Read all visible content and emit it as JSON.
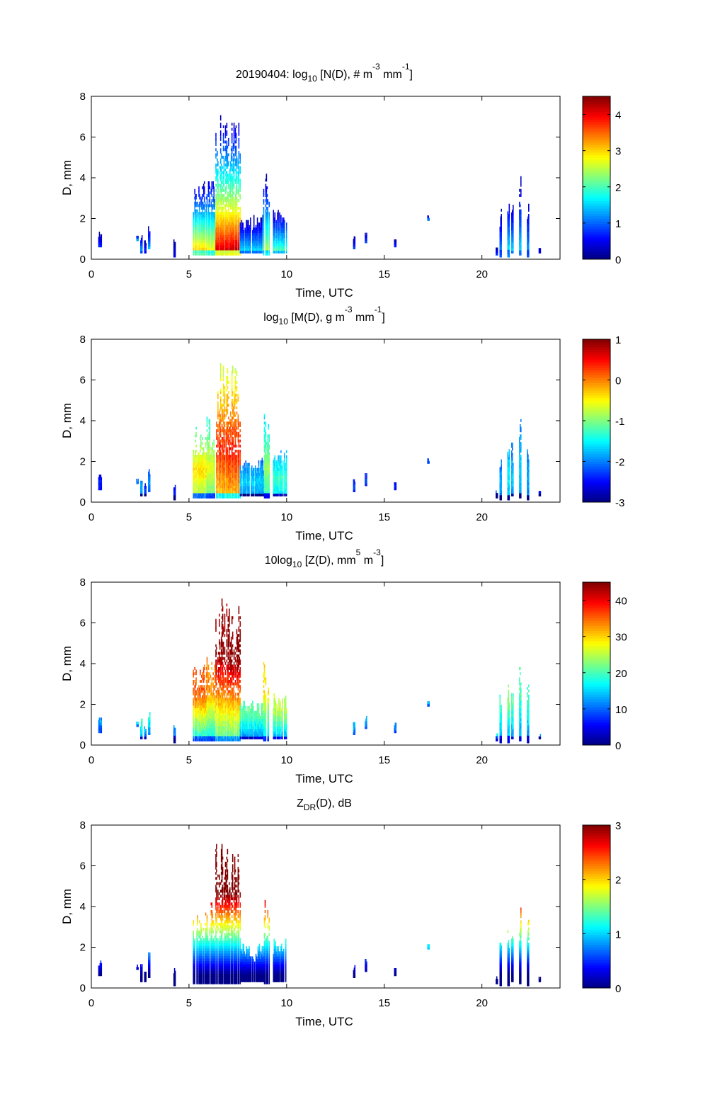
{
  "chart_data": [
    {
      "type": "heatmap",
      "title_parts": [
        {
          "t": "20190404: log"
        },
        {
          "t": "10",
          "sub": true
        },
        {
          "t": " [N(D), # m"
        },
        {
          "t": "-3",
          "sup": true
        },
        {
          "t": " mm"
        },
        {
          "t": "-1",
          "sup": true
        },
        {
          "t": "]"
        }
      ],
      "title": "20190404: log10 [N(D), # m^-3 mm^-1]",
      "xlabel": "Time, UTC",
      "ylabel": "D, mm",
      "xlim": [
        0,
        24
      ],
      "ylim": [
        0,
        8
      ],
      "xticks": [
        0,
        5,
        10,
        15,
        20
      ],
      "yticks": [
        0,
        2,
        4,
        6,
        8
      ],
      "colorbar": {
        "range": [
          0,
          4.5
        ],
        "ticks": [
          0,
          1,
          2,
          3,
          4
        ]
      },
      "variable": "N"
    },
    {
      "type": "heatmap",
      "title_parts": [
        {
          "t": "log"
        },
        {
          "t": "10",
          "sub": true
        },
        {
          "t": " [M(D), g m"
        },
        {
          "t": "-3",
          "sup": true
        },
        {
          "t": " mm"
        },
        {
          "t": "-1",
          "sup": true
        },
        {
          "t": "]"
        }
      ],
      "title": "log10 [M(D), g m^-3 mm^-1]",
      "xlabel": "Time, UTC",
      "ylabel": "D, mm",
      "xlim": [
        0,
        24
      ],
      "ylim": [
        0,
        8
      ],
      "xticks": [
        0,
        5,
        10,
        15,
        20
      ],
      "yticks": [
        0,
        2,
        4,
        6,
        8
      ],
      "colorbar": {
        "range": [
          -3,
          1
        ],
        "ticks": [
          -3,
          -2,
          -1,
          0,
          1
        ]
      },
      "variable": "M"
    },
    {
      "type": "heatmap",
      "title_parts": [
        {
          "t": "10log"
        },
        {
          "t": "10",
          "sub": true
        },
        {
          "t": " [Z(D),  mm"
        },
        {
          "t": "5",
          "sup": true
        },
        {
          "t": " m"
        },
        {
          "t": "-3",
          "sup": true
        },
        {
          "t": "]"
        }
      ],
      "title": "10log10 [Z(D), mm^5 m^-3]",
      "xlabel": "Time, UTC",
      "ylabel": "D, mm",
      "xlim": [
        0,
        24
      ],
      "ylim": [
        0,
        8
      ],
      "xticks": [
        0,
        5,
        10,
        15,
        20
      ],
      "yticks": [
        0,
        2,
        4,
        6,
        8
      ],
      "colorbar": {
        "range": [
          0,
          45
        ],
        "ticks": [
          0,
          10,
          20,
          30,
          40
        ]
      },
      "variable": "Z"
    },
    {
      "type": "heatmap",
      "title_parts": [
        {
          "t": "Z"
        },
        {
          "t": "DR",
          "sub": true
        },
        {
          "t": "(D), dB"
        }
      ],
      "title": "ZDR(D), dB",
      "xlabel": "Time, UTC",
      "ylabel": "D, mm",
      "xlim": [
        0,
        24
      ],
      "ylim": [
        0,
        8
      ],
      "xticks": [
        0,
        5,
        10,
        15,
        20
      ],
      "yticks": [
        0,
        2,
        4,
        6,
        8
      ],
      "colorbar": {
        "range": [
          0,
          3
        ],
        "ticks": [
          0,
          1,
          2,
          3
        ]
      },
      "variable": "ZDR"
    }
  ],
  "precip_events": [
    {
      "t0": 0.35,
      "t1": 0.5,
      "dmin": 0.6,
      "dmax": 1.3,
      "peakN": 0.6
    },
    {
      "t0": 2.3,
      "t1": 2.4,
      "dmin": 0.9,
      "dmax": 1.1,
      "peakN": 1.2
    },
    {
      "t0": 2.5,
      "t1": 2.6,
      "dmin": 0.3,
      "dmax": 1.3,
      "peakN": 1.4
    },
    {
      "t0": 2.7,
      "t1": 2.8,
      "dmin": 0.3,
      "dmax": 0.9,
      "peakN": 0.8
    },
    {
      "t0": 2.9,
      "t1": 3.0,
      "dmin": 0.5,
      "dmax": 1.7,
      "peakN": 1.3
    },
    {
      "t0": 4.2,
      "t1": 4.3,
      "dmin": 0.1,
      "dmax": 0.9,
      "peakN": 0.6
    },
    {
      "t0": 5.2,
      "t1": 5.9,
      "dmin": 0.2,
      "dmax": 3.9,
      "peakN": 3.3
    },
    {
      "t0": 5.9,
      "t1": 6.3,
      "dmin": 0.2,
      "dmax": 4.3,
      "peakN": 3.0
    },
    {
      "t0": 6.35,
      "t1": 7.0,
      "dmin": 0.2,
      "dmax": 7.1,
      "peakN": 4.3
    },
    {
      "t0": 7.0,
      "t1": 7.6,
      "dmin": 0.2,
      "dmax": 6.9,
      "peakN": 4.4
    },
    {
      "t0": 7.6,
      "t1": 8.8,
      "dmin": 0.3,
      "dmax": 2.1,
      "peakN": 1.6
    },
    {
      "t0": 8.8,
      "t1": 9.1,
      "dmin": 0.2,
      "dmax": 4.3,
      "peakN": 2.6
    },
    {
      "t0": 9.3,
      "t1": 10.0,
      "dmin": 0.3,
      "dmax": 2.5,
      "peakN": 2.1
    },
    {
      "t0": 13.4,
      "t1": 13.5,
      "dmin": 0.5,
      "dmax": 1.1,
      "peakN": 0.8
    },
    {
      "t0": 14.0,
      "t1": 14.1,
      "dmin": 0.8,
      "dmax": 1.4,
      "peakN": 0.8
    },
    {
      "t0": 15.5,
      "t1": 15.6,
      "dmin": 0.6,
      "dmax": 1.0,
      "peakN": 0.6
    },
    {
      "t0": 17.2,
      "t1": 17.3,
      "dmin": 1.9,
      "dmax": 2.1,
      "peakN": 1.0
    },
    {
      "t0": 20.7,
      "t1": 20.8,
      "dmin": 0.2,
      "dmax": 0.5,
      "peakN": 1.2
    },
    {
      "t0": 20.9,
      "t1": 21.0,
      "dmin": 0.1,
      "dmax": 2.5,
      "peakN": 1.4
    },
    {
      "t0": 21.3,
      "t1": 21.4,
      "dmin": 0.1,
      "dmax": 3.3,
      "peakN": 1.8
    },
    {
      "t0": 21.5,
      "t1": 21.6,
      "dmin": 0.3,
      "dmax": 2.9,
      "peakN": 1.6
    },
    {
      "t0": 21.9,
      "t1": 22.0,
      "dmin": 0.2,
      "dmax": 4.3,
      "peakN": 1.6
    },
    {
      "t0": 22.3,
      "t1": 22.4,
      "dmin": 0.1,
      "dmax": 3.3,
      "peakN": 1.4
    },
    {
      "t0": 22.9,
      "t1": 23.0,
      "dmin": 0.3,
      "dmax": 0.5,
      "peakN": 0.6
    }
  ]
}
